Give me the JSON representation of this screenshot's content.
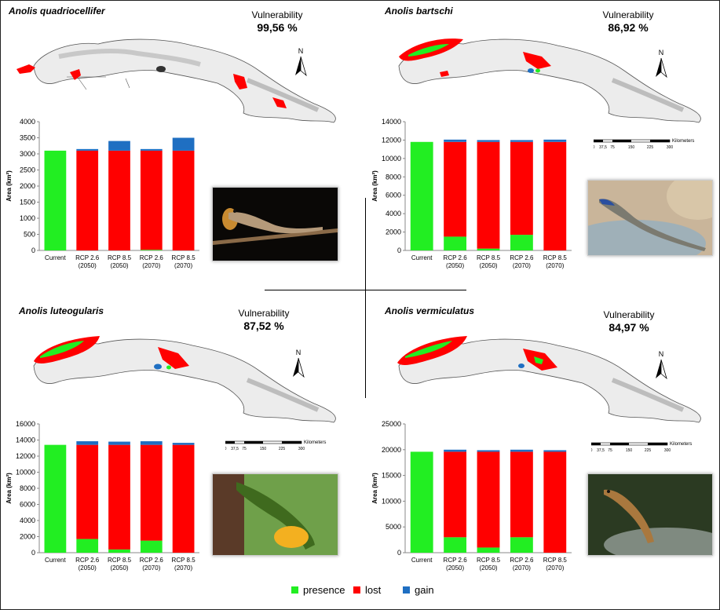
{
  "legend": [
    {
      "label": "presence",
      "color": "#22ee22"
    },
    {
      "label": "lost",
      "color": "#ff0000"
    },
    {
      "label": "gain",
      "color": "#1f6fc2"
    }
  ],
  "scale_bar": {
    "unit": "Kilometers",
    "ticks": [
      "0",
      "37,5",
      "75",
      "150",
      "225",
      "300"
    ]
  },
  "north_label": "N",
  "vulnerability_label": "Vulnerability",
  "chart_data": [
    {
      "type": "bar",
      "title": "Anolis quadriocellifer",
      "vulnerability": "99,56 %",
      "ylabel": "Area (km²)",
      "ylim": [
        0,
        4000
      ],
      "yticks": [
        0,
        500,
        1000,
        1500,
        2000,
        2500,
        3000,
        3500,
        4000
      ],
      "categories": [
        [
          "Current"
        ],
        [
          "RCP 2.6",
          "(2050)"
        ],
        [
          "RCP 8.5",
          "(2050)"
        ],
        [
          "RCP 2.6",
          "(2070)"
        ],
        [
          "RCP 8.5",
          "(2070)"
        ]
      ],
      "series": [
        {
          "name": "presence",
          "values": [
            3100,
            0,
            0,
            20,
            0
          ]
        },
        {
          "name": "lost",
          "values": [
            0,
            3100,
            3100,
            3080,
            3100
          ]
        },
        {
          "name": "gain",
          "values": [
            0,
            50,
            300,
            50,
            400
          ]
        }
      ]
    },
    {
      "type": "bar",
      "title": "Anolis bartschi",
      "vulnerability": "86,92 %",
      "ylabel": "Area (km²)",
      "ylim": [
        0,
        14000
      ],
      "yticks": [
        0,
        2000,
        4000,
        6000,
        8000,
        10000,
        12000,
        14000
      ],
      "categories": [
        [
          "Current"
        ],
        [
          "RCP 2.6",
          "(2050)"
        ],
        [
          "RCP 8.5",
          "(2050)"
        ],
        [
          "RCP 2.6",
          "(2070)"
        ],
        [
          "RCP 8.5",
          "(2070)"
        ]
      ],
      "series": [
        {
          "name": "presence",
          "values": [
            11800,
            1500,
            200,
            1700,
            0
          ]
        },
        {
          "name": "lost",
          "values": [
            0,
            10300,
            11600,
            10100,
            11800
          ]
        },
        {
          "name": "gain",
          "values": [
            0,
            250,
            200,
            200,
            250
          ]
        }
      ]
    },
    {
      "type": "bar",
      "title": "Anolis luteogularis",
      "vulnerability": "87,52 %",
      "ylabel": "Area (km²)",
      "ylim": [
        0,
        16000
      ],
      "yticks": [
        0,
        2000,
        4000,
        6000,
        8000,
        10000,
        12000,
        14000,
        16000
      ],
      "categories": [
        [
          "Current"
        ],
        [
          "RCP 2.6",
          "(2050)"
        ],
        [
          "RCP 8.5",
          "(2050)"
        ],
        [
          "RCP 2.6",
          "(2070)"
        ],
        [
          "RCP 8.5",
          "(2070)"
        ]
      ],
      "series": [
        {
          "name": "presence",
          "values": [
            13400,
            1700,
            400,
            1500,
            0
          ]
        },
        {
          "name": "lost",
          "values": [
            0,
            11700,
            13000,
            11900,
            13400
          ]
        },
        {
          "name": "gain",
          "values": [
            0,
            450,
            400,
            450,
            250
          ]
        }
      ]
    },
    {
      "type": "bar",
      "title": "Anolis vermiculatus",
      "vulnerability": "84,97 %",
      "ylabel": "Area (km²)",
      "ylim": [
        0,
        25000
      ],
      "yticks": [
        0,
        5000,
        10000,
        15000,
        20000,
        25000
      ],
      "categories": [
        [
          "Current"
        ],
        [
          "RCP 2.6",
          "(2050)"
        ],
        [
          "RCP 8.5",
          "(2050)"
        ],
        [
          "RCP 2.6",
          "(2070)"
        ],
        [
          "RCP 8.5",
          "(2070)"
        ]
      ],
      "series": [
        {
          "name": "presence",
          "values": [
            19600,
            3000,
            1000,
            3000,
            0
          ]
        },
        {
          "name": "lost",
          "values": [
            0,
            16600,
            18600,
            16600,
            19600
          ]
        },
        {
          "name": "gain",
          "values": [
            0,
            400,
            300,
            400,
            300
          ]
        }
      ]
    }
  ]
}
